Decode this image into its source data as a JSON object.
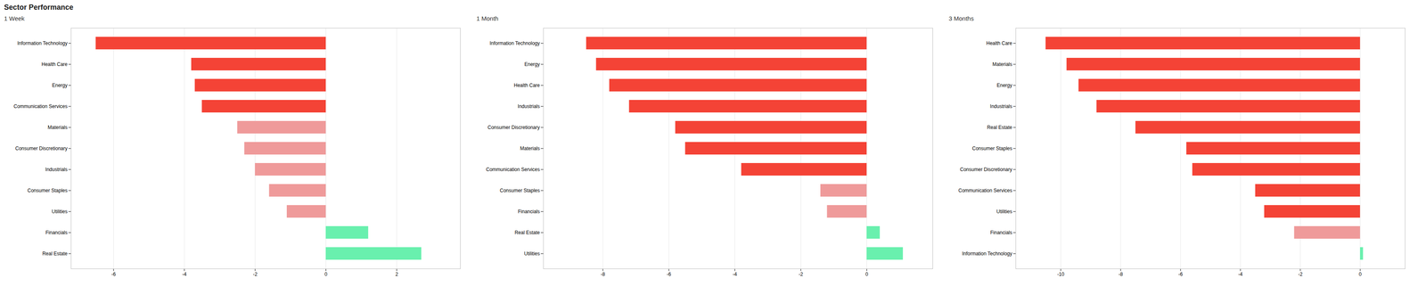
{
  "title": "Sector Performance",
  "chart_data": [
    {
      "type": "bar",
      "orientation": "horizontal",
      "subtitle": "1 Week",
      "categories": [
        "Information Technology",
        "Health Care",
        "Energy",
        "Communication Services",
        "Materials",
        "Consumer Discretionary",
        "Industrials",
        "Consumer Staples",
        "Utilities",
        "Financials",
        "Real Estate"
      ],
      "values": [
        -6.5,
        -3.8,
        -3.7,
        -3.5,
        -2.5,
        -2.3,
        -2.0,
        -1.6,
        -1.1,
        1.2,
        2.7
      ],
      "colors": [
        "#f44336",
        "#f44336",
        "#f44336",
        "#f44336",
        "#ef9a9a",
        "#ef9a9a",
        "#ef9a9a",
        "#ef9a9a",
        "#ef9a9a",
        "#69f0ae",
        "#69f0ae"
      ],
      "xlim": [
        -7.2,
        3.8
      ],
      "xticks": [
        -6,
        -4,
        -2,
        0,
        2
      ],
      "grid": true
    },
    {
      "type": "bar",
      "orientation": "horizontal",
      "subtitle": "1 Month",
      "categories": [
        "Information Technology",
        "Energy",
        "Health Care",
        "Industrials",
        "Consumer Discretionary",
        "Materials",
        "Communication Services",
        "Consumer Staples",
        "Financials",
        "Real Estate",
        "Utilities"
      ],
      "values": [
        -8.5,
        -8.2,
        -7.8,
        -7.2,
        -5.8,
        -5.5,
        -3.8,
        -1.4,
        -1.2,
        0.4,
        1.1
      ],
      "colors": [
        "#f44336",
        "#f44336",
        "#f44336",
        "#f44336",
        "#f44336",
        "#f44336",
        "#f44336",
        "#ef9a9a",
        "#ef9a9a",
        "#69f0ae",
        "#69f0ae"
      ],
      "xlim": [
        -9.8,
        2.0
      ],
      "xticks": [
        -8,
        -6,
        -4,
        -2,
        0
      ],
      "grid": true
    },
    {
      "type": "bar",
      "orientation": "horizontal",
      "subtitle": "3 Months",
      "categories": [
        "Health Care",
        "Materials",
        "Energy",
        "Industrials",
        "Real Estate",
        "Consumer Staples",
        "Consumer Discretionary",
        "Communication Services",
        "Utilities",
        "Financials",
        "Information Technology"
      ],
      "values": [
        -10.5,
        -9.8,
        -9.4,
        -8.8,
        -7.5,
        -5.8,
        -5.6,
        -3.5,
        -3.2,
        -2.2,
        0.1
      ],
      "colors": [
        "#f44336",
        "#f44336",
        "#f44336",
        "#f44336",
        "#f44336",
        "#f44336",
        "#f44336",
        "#f44336",
        "#f44336",
        "#ef9a9a",
        "#69f0ae"
      ],
      "xlim": [
        -11.5,
        1.5
      ],
      "xticks": [
        -10,
        -8,
        -6,
        -4,
        -2,
        0
      ],
      "grid": true
    }
  ]
}
